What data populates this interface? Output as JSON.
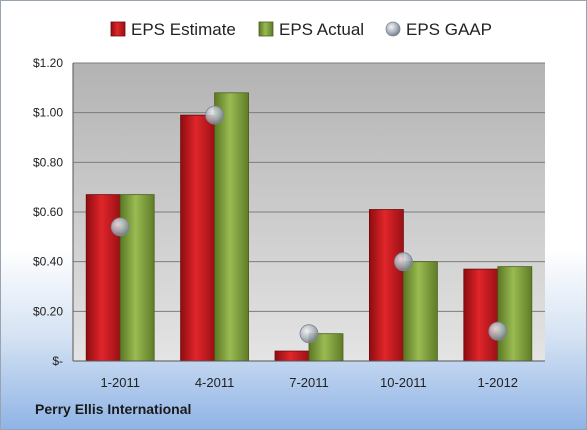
{
  "chart_data": {
    "type": "bar",
    "categories": [
      "1-2011",
      "4-2011",
      "7-2011",
      "10-2011",
      "1-2012"
    ],
    "series": [
      {
        "name": "EPS Estimate",
        "values": [
          0.67,
          0.99,
          0.04,
          0.61,
          0.37
        ],
        "color": "#c0161c"
      },
      {
        "name": "EPS Actual",
        "values": [
          0.67,
          1.08,
          0.11,
          0.4,
          0.38
        ],
        "color": "#7a9a35"
      },
      {
        "name": "EPS GAAP",
        "values": [
          0.54,
          0.99,
          0.11,
          0.4,
          0.12
        ],
        "color": "#a9b1bc",
        "type": "scatter"
      }
    ],
    "yticks": [
      {
        "value": 0,
        "label": "$-"
      },
      {
        "value": 0.2,
        "label": "$0.20"
      },
      {
        "value": 0.4,
        "label": "$0.40"
      },
      {
        "value": 0.6,
        "label": "$0.60"
      },
      {
        "value": 0.8,
        "label": "$0.80"
      },
      {
        "value": 1.0,
        "label": "$1.00"
      },
      {
        "value": 1.2,
        "label": "$1.20"
      }
    ],
    "ylim": [
      0,
      1.2
    ],
    "grid": true,
    "legend_position": "top"
  },
  "footer": {
    "company": "Perry Ellis International"
  }
}
